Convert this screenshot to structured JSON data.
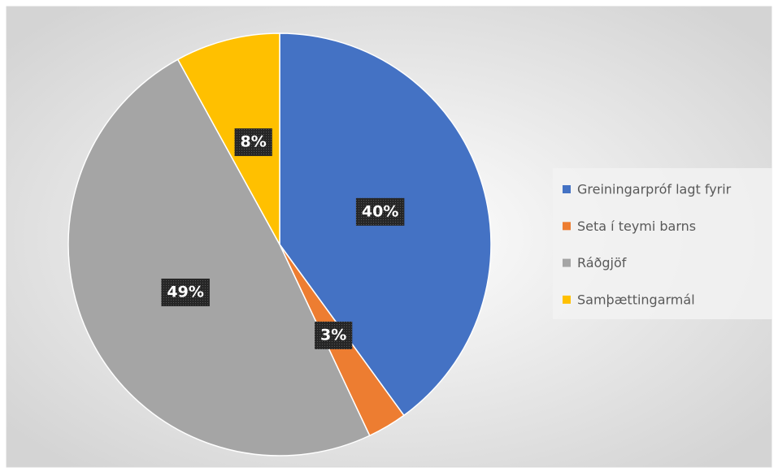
{
  "chart_data": {
    "type": "pie",
    "categories": [
      "Greiningarpróf lagt fyrir",
      "Seta í teymi barns",
      "Ráðgjöf",
      "Samþættingarmál"
    ],
    "values": [
      40,
      3,
      49,
      8
    ],
    "value_labels": [
      "40%",
      "3%",
      "49%",
      "8%"
    ],
    "colors": [
      "#4472c4",
      "#ed7d31",
      "#a5a5a5",
      "#ffc000"
    ],
    "legend": "right"
  }
}
